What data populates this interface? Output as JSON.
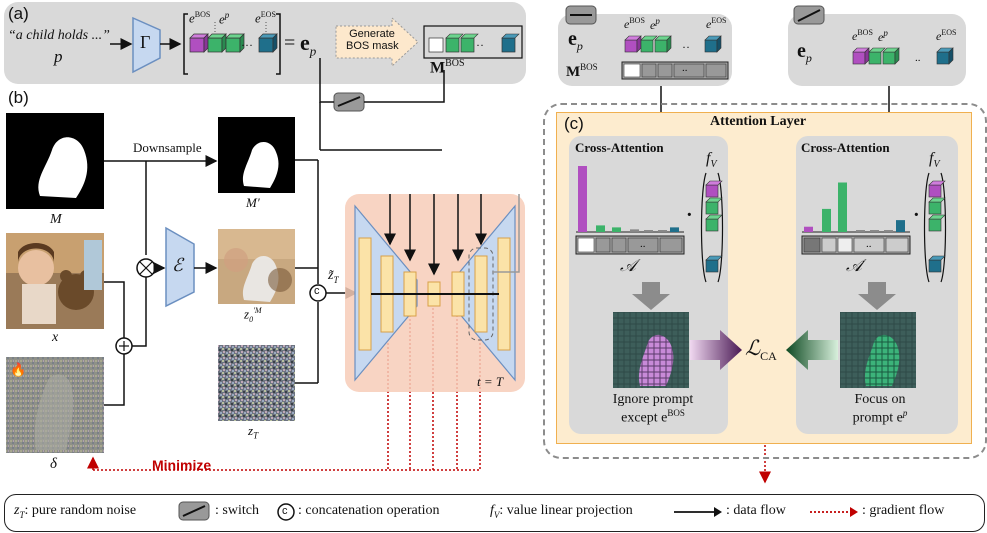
{
  "panel_labels": {
    "a": "(a)",
    "b": "(b)",
    "c": "(c)"
  },
  "panel_a": {
    "prompt_text": "“a child holds ...”",
    "prompt_var": "p",
    "encoder": "Γ",
    "ebos": "e",
    "ebos_sup": "BOS",
    "ep": "e",
    "ep_sup": "p",
    "dots": "···",
    "eeos": "e",
    "eeos_sup": "EOS",
    "equals": "=",
    "ep_bold": "e",
    "ep_bold_sub": "p",
    "generate_label_1": "Generate",
    "generate_label_2": "BOS mask",
    "mbos": "M",
    "mbos_sup": "BOS"
  },
  "panel_b": {
    "downsample": "Downsample",
    "m_label": "M",
    "m_prime_label": "M′",
    "x_label": "x",
    "delta_label": "δ",
    "encoder_label": "ℰ",
    "z0m_label": "z",
    "z0m_sub": "0",
    "z0m_sup": "′M",
    "zt_label": "z",
    "zt_sub": "T",
    "zt_tilde": "z̃",
    "zt_tilde_sub": "T",
    "concat": "c",
    "t_label": "t = T",
    "minimize": "Minimize",
    "fire": "🔥"
  },
  "panel_top_left": {
    "ep": "e",
    "ep_sub": "p",
    "ebos": "e",
    "ebos_sup": "BOS",
    "ep_tok": "e",
    "ep_tok_sup": "p",
    "eeos": "e",
    "eeos_sup": "EOS",
    "mbos": "M",
    "mbos_sup": "BOS",
    "mask_dots": ".."
  },
  "panel_top_right": {
    "ep": "e",
    "ep_sub": "p",
    "ebos": "e",
    "ebos_sup": "BOS",
    "ep_tok": "e",
    "ep_tok_sup": "p",
    "eeos": "e",
    "eeos_sup": "EOS",
    "dots": ".."
  },
  "panel_c": {
    "attention_layer": "Attention Layer",
    "cross_attention_left": "Cross-Attention",
    "cross_attention_right": "Cross-Attention",
    "fv_left": "f",
    "fv_left_sub": "V",
    "fv_right": "f",
    "fv_right_sub": "V",
    "a_left": "𝒜",
    "a_right": "𝒜",
    "a_right_sup": "·",
    "mask_dots": "..",
    "loss": "ℒ",
    "loss_sub": "CA",
    "ignore_1": "Ignore prompt",
    "ignore_2": "except e",
    "ignore_2_sup": "BOS",
    "focus_1": "Focus on",
    "focus_2": "prompt e",
    "focus_2_sup": "p",
    "dot": "·"
  },
  "legend": {
    "zt": "z",
    "zt_sub": "T",
    "zt_desc": ": pure random noise",
    "switch_desc": ": switch",
    "concat_symbol": "c",
    "concat_desc": ": concatenation operation",
    "fv": "f",
    "fv_sub": "V",
    "fv_desc": ": value linear projection",
    "data_flow": ": data flow",
    "gradient_flow": ": gradient flow"
  },
  "colors": {
    "purple": "#b04fc0",
    "green": "#3cb36a",
    "teal": "#1f6f8b",
    "panel_gray": "#d9d9d9",
    "attention_bg": "#fdeccf",
    "unet_bg": "#f7cdb8",
    "unet_block": "#fbe3a8",
    "encoder_blue": "#c6d8f0",
    "gradient_red": "#c00000",
    "minimize_red": "#c00000"
  },
  "chart_data": [
    {
      "type": "bar",
      "title": "",
      "categories": [
        "e^BOS",
        "e^p",
        "e^p",
        "",
        "",
        "",
        "e^EOS"
      ],
      "values": [
        1.0,
        0.1,
        0.07,
        0.04,
        0.03,
        0.03,
        0.07
      ],
      "bar_colors": [
        "#b04fc0",
        "#3cb36a",
        "#3cb36a",
        "#888888",
        "#888888",
        "#888888",
        "#1f6f8b"
      ]
    },
    {
      "type": "bar",
      "title": "",
      "categories": [
        "e^BOS",
        "e^p",
        "e^p",
        "",
        "",
        "",
        "e^EOS"
      ],
      "values": [
        0.08,
        0.35,
        0.75,
        0.03,
        0.03,
        0.03,
        0.18
      ],
      "bar_colors": [
        "#b04fc0",
        "#3cb36a",
        "#3cb36a",
        "#888888",
        "#888888",
        "#888888",
        "#1f6f8b"
      ]
    }
  ]
}
